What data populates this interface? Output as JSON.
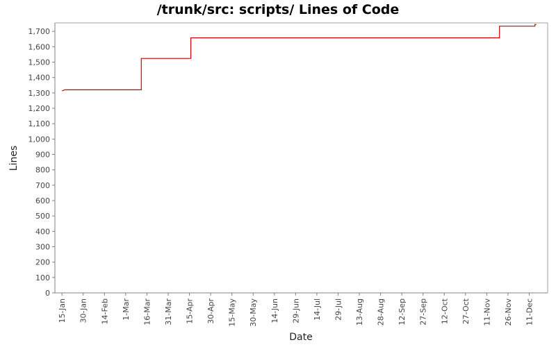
{
  "chart_data": {
    "type": "line",
    "title": "/trunk/src: scripts/ Lines of Code",
    "xlabel": "Date",
    "ylabel": "Lines",
    "ylim": [
      0,
      1750
    ],
    "yticks": [
      0,
      100,
      200,
      300,
      400,
      500,
      600,
      700,
      800,
      900,
      1000,
      1100,
      1200,
      1300,
      1400,
      1500,
      1600,
      1700
    ],
    "ytick_labels": [
      "0",
      "100",
      "200",
      "300",
      "400",
      "500",
      "600",
      "700",
      "800",
      "900",
      "1,000",
      "1,100",
      "1,200",
      "1,300",
      "1,400",
      "1,500",
      "1,600",
      "1,700"
    ],
    "xlim": [
      "Jan 10",
      "Dec 24"
    ],
    "xticks": [
      {
        "date": "Jan 15",
        "label": "15-Jan"
      },
      {
        "date": "Jan 30",
        "label": "30-Jan"
      },
      {
        "date": "Feb 14",
        "label": "14-Feb"
      },
      {
        "date": "Mar 1",
        "label": "1-Mar"
      },
      {
        "date": "Mar 16",
        "label": "16-Mar"
      },
      {
        "date": "Mar 31",
        "label": "31-Mar"
      },
      {
        "date": "Apr 15",
        "label": "15-Apr"
      },
      {
        "date": "Apr 30",
        "label": "30-Apr"
      },
      {
        "date": "May 15",
        "label": "15-May"
      },
      {
        "date": "May 30",
        "label": "30-May"
      },
      {
        "date": "Jun 14",
        "label": "14-Jun"
      },
      {
        "date": "Jun 29",
        "label": "29-Jun"
      },
      {
        "date": "Jul 14",
        "label": "14-Jul"
      },
      {
        "date": "Jul 29",
        "label": "29-Jul"
      },
      {
        "date": "Aug 13",
        "label": "13-Aug"
      },
      {
        "date": "Aug 28",
        "label": "28-Aug"
      },
      {
        "date": "Sep 12",
        "label": "12-Sep"
      },
      {
        "date": "Sep 27",
        "label": "27-Sep"
      },
      {
        "date": "Oct 12",
        "label": "12-Oct"
      },
      {
        "date": "Oct 27",
        "label": "27-Oct"
      },
      {
        "date": "Nov 11",
        "label": "11-Nov"
      },
      {
        "date": "Nov 26",
        "label": "26-Nov"
      },
      {
        "date": "Dec 11",
        "label": "11-Dec"
      }
    ],
    "grid": false,
    "step": true,
    "series": [
      {
        "color": "#cc0000",
        "points": [
          {
            "x": "Jan 15",
            "y": 1313
          },
          {
            "x": "Jan 17",
            "y": 1320
          },
          {
            "x": "Mar 12",
            "y": 1320
          },
          {
            "x": "Mar 12",
            "y": 1524
          },
          {
            "x": "Apr 16",
            "y": 1524
          },
          {
            "x": "Apr 16",
            "y": 1658
          },
          {
            "x": "Nov 20",
            "y": 1658
          },
          {
            "x": "Nov 20",
            "y": 1734
          },
          {
            "x": "Dec 15",
            "y": 1734
          },
          {
            "x": "Dec 15",
            "y": 1745
          },
          {
            "x": "Dec 16",
            "y": 1745
          }
        ]
      }
    ]
  }
}
